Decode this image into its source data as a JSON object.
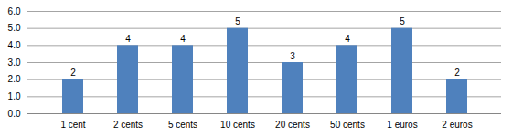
{
  "chart_data": {
    "type": "bar",
    "categories": [
      "1 cent",
      "2 cents",
      "5 cents",
      "10 cents",
      "20 cents",
      "50 cents",
      "1 euros",
      "2 euros"
    ],
    "values": [
      2,
      4,
      4,
      5,
      3,
      4,
      5,
      2
    ],
    "color": "#4f81bd",
    "ylim": [
      0,
      6
    ],
    "yticks": [
      0,
      1,
      2,
      3,
      4,
      5,
      6
    ],
    "grid": true,
    "data_labels": true
  }
}
